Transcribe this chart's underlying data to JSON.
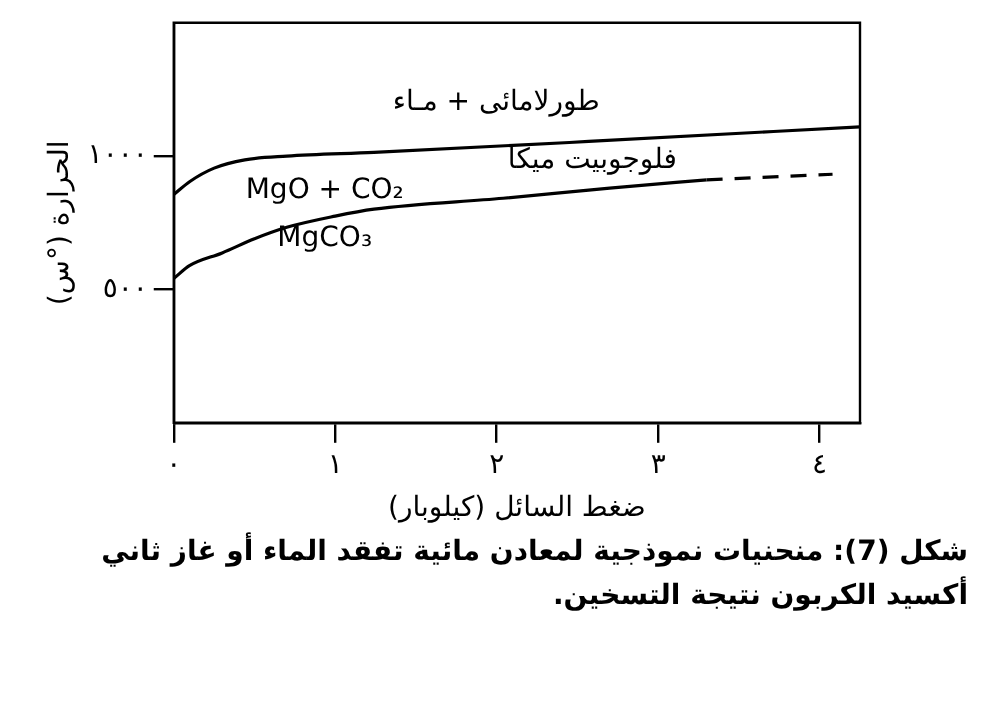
{
  "chart_data": {
    "type": "line",
    "xlabel": "ضغط السائل (كيلوبار)",
    "ylabel": "الحرارة (°س)",
    "xlim": [
      0,
      4.25
    ],
    "ylim": [
      0,
      1500
    ],
    "xticks": [
      {
        "value": 0,
        "label": "٠"
      },
      {
        "value": 1,
        "label": "١"
      },
      {
        "value": 2,
        "label": "٢"
      },
      {
        "value": 3,
        "label": "٣"
      },
      {
        "value": 4,
        "label": "٤"
      }
    ],
    "yticks": [
      {
        "value": 500,
        "label": "٥٠٠"
      },
      {
        "value": 1000,
        "label": "١٠٠٠"
      }
    ],
    "grid": false,
    "legend": false,
    "marker": "none",
    "series": [
      {
        "color": "#000000",
        "line_style": "solid",
        "x": [
          0,
          0.1,
          0.25,
          0.44,
          0.7,
          1.24,
          2.57,
          4.25
        ],
        "values": [
          856,
          905,
          955,
          986,
          1000,
          1014,
          1055,
          1110
        ]
      },
      {
        "color": "#000000",
        "line_style": "solid",
        "x": [
          0,
          0.1,
          0.3,
          0.5,
          0.7,
          1.0,
          1.24,
          2.04,
          2.7,
          3.3
        ],
        "values": [
          541,
          590,
          637,
          690,
          733,
          775,
          801,
          842,
          880,
          911
        ]
      },
      {
        "color": "#000000",
        "line_style": "dashed",
        "x": [
          3.3,
          4.08
        ],
        "values": [
          911,
          932
        ]
      }
    ],
    "annotations": [
      "طورلامائى + مـاء",
      "فلوجوبيت ميكا",
      "MgO + CO₂",
      "MgCO₃",
      "شكل (7): منحنيات نموذجية لمعادن مائية تفقد الماء أو غاز ثاني أكسيد الكربون نتيجة التسخين."
    ]
  }
}
